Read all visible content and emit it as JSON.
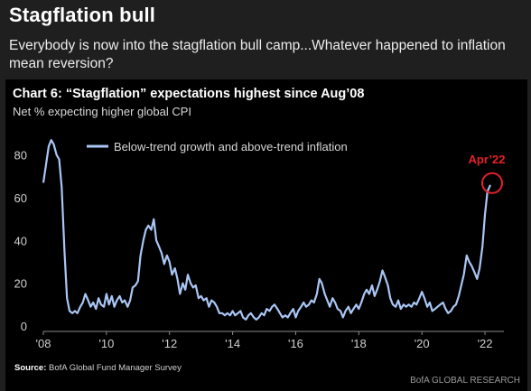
{
  "header": {
    "title": "Stagflation bull",
    "subtitle": "Everybody is now into the stagflation bull camp...Whatever happened to inflation mean reversion?"
  },
  "chart_data": {
    "type": "line",
    "title": "Chart 6: “Stagflation” expectations highest since Aug’08",
    "subtitle": "Net % expecting higher global CPI",
    "xlabel": "",
    "ylabel": "",
    "xlim": [
      2008.0,
      2022.6
    ],
    "ylim": [
      0,
      90
    ],
    "grid": false,
    "legend_position": "top-left",
    "yticks": [
      0,
      20,
      40,
      60,
      80
    ],
    "xticks": [
      {
        "value": 2008,
        "label": "'08"
      },
      {
        "value": 2010,
        "label": "'10"
      },
      {
        "value": 2012,
        "label": "'12"
      },
      {
        "value": 2014,
        "label": "'14"
      },
      {
        "value": 2016,
        "label": "'16"
      },
      {
        "value": 2018,
        "label": "'18"
      },
      {
        "value": 2020,
        "label": "'20"
      },
      {
        "value": 2022,
        "label": "'22"
      }
    ],
    "line_color": "#a9c6f5",
    "series": [
      {
        "name": "Below-trend growth and above-trend inflation",
        "points": [
          [
            2008.0,
            67
          ],
          [
            2008.08,
            75
          ],
          [
            2008.17,
            84
          ],
          [
            2008.25,
            87
          ],
          [
            2008.33,
            85
          ],
          [
            2008.42,
            80
          ],
          [
            2008.5,
            78
          ],
          [
            2008.58,
            65
          ],
          [
            2008.67,
            35
          ],
          [
            2008.75,
            13
          ],
          [
            2008.83,
            7
          ],
          [
            2008.92,
            6
          ],
          [
            2009.0,
            7
          ],
          [
            2009.08,
            6
          ],
          [
            2009.17,
            9
          ],
          [
            2009.25,
            11
          ],
          [
            2009.33,
            15
          ],
          [
            2009.42,
            12
          ],
          [
            2009.5,
            9
          ],
          [
            2009.58,
            11
          ],
          [
            2009.67,
            8
          ],
          [
            2009.75,
            13
          ],
          [
            2009.83,
            10
          ],
          [
            2009.92,
            9
          ],
          [
            2010.0,
            15
          ],
          [
            2010.08,
            10
          ],
          [
            2010.17,
            14
          ],
          [
            2010.25,
            9
          ],
          [
            2010.33,
            12
          ],
          [
            2010.42,
            14
          ],
          [
            2010.5,
            11
          ],
          [
            2010.58,
            12
          ],
          [
            2010.67,
            9
          ],
          [
            2010.75,
            12
          ],
          [
            2010.83,
            18
          ],
          [
            2010.92,
            19
          ],
          [
            2011.0,
            21
          ],
          [
            2011.08,
            33
          ],
          [
            2011.17,
            40
          ],
          [
            2011.25,
            45
          ],
          [
            2011.33,
            47
          ],
          [
            2011.42,
            45
          ],
          [
            2011.5,
            50
          ],
          [
            2011.58,
            40
          ],
          [
            2011.67,
            37
          ],
          [
            2011.75,
            34
          ],
          [
            2011.83,
            29
          ],
          [
            2011.92,
            33
          ],
          [
            2012.0,
            30
          ],
          [
            2012.08,
            24
          ],
          [
            2012.17,
            27
          ],
          [
            2012.25,
            22
          ],
          [
            2012.33,
            15
          ],
          [
            2012.42,
            20
          ],
          [
            2012.5,
            17
          ],
          [
            2012.58,
            24
          ],
          [
            2012.67,
            20
          ],
          [
            2012.75,
            18
          ],
          [
            2012.83,
            19
          ],
          [
            2012.92,
            13
          ],
          [
            2013.0,
            14
          ],
          [
            2013.08,
            12
          ],
          [
            2013.17,
            13
          ],
          [
            2013.25,
            9
          ],
          [
            2013.33,
            12
          ],
          [
            2013.42,
            11
          ],
          [
            2013.5,
            9
          ],
          [
            2013.58,
            6
          ],
          [
            2013.67,
            6
          ],
          [
            2013.75,
            5
          ],
          [
            2013.83,
            6
          ],
          [
            2013.92,
            5
          ],
          [
            2014.0,
            7
          ],
          [
            2014.08,
            5
          ],
          [
            2014.17,
            6
          ],
          [
            2014.25,
            7
          ],
          [
            2014.33,
            4
          ],
          [
            2014.42,
            3
          ],
          [
            2014.5,
            5
          ],
          [
            2014.58,
            6
          ],
          [
            2014.67,
            4
          ],
          [
            2014.75,
            3
          ],
          [
            2014.83,
            4
          ],
          [
            2014.92,
            6
          ],
          [
            2015.0,
            5
          ],
          [
            2015.08,
            8
          ],
          [
            2015.17,
            7
          ],
          [
            2015.25,
            9
          ],
          [
            2015.33,
            10
          ],
          [
            2015.42,
            8
          ],
          [
            2015.5,
            6
          ],
          [
            2015.58,
            4
          ],
          [
            2015.67,
            5
          ],
          [
            2015.75,
            4
          ],
          [
            2015.83,
            6
          ],
          [
            2015.92,
            8
          ],
          [
            2016.0,
            4
          ],
          [
            2016.08,
            7
          ],
          [
            2016.17,
            9
          ],
          [
            2016.25,
            11
          ],
          [
            2016.33,
            9
          ],
          [
            2016.42,
            10
          ],
          [
            2016.5,
            12
          ],
          [
            2016.58,
            11
          ],
          [
            2016.67,
            15
          ],
          [
            2016.75,
            22
          ],
          [
            2016.83,
            20
          ],
          [
            2016.92,
            15
          ],
          [
            2017.0,
            12
          ],
          [
            2017.08,
            9
          ],
          [
            2017.17,
            13
          ],
          [
            2017.25,
            11
          ],
          [
            2017.33,
            8
          ],
          [
            2017.42,
            7
          ],
          [
            2017.5,
            4
          ],
          [
            2017.58,
            7
          ],
          [
            2017.67,
            9
          ],
          [
            2017.75,
            6
          ],
          [
            2017.83,
            8
          ],
          [
            2017.92,
            10
          ],
          [
            2018.0,
            8
          ],
          [
            2018.08,
            11
          ],
          [
            2018.17,
            15
          ],
          [
            2018.25,
            17
          ],
          [
            2018.33,
            15
          ],
          [
            2018.42,
            19
          ],
          [
            2018.5,
            14
          ],
          [
            2018.58,
            17
          ],
          [
            2018.67,
            21
          ],
          [
            2018.75,
            26
          ],
          [
            2018.83,
            23
          ],
          [
            2018.92,
            19
          ],
          [
            2019.0,
            13
          ],
          [
            2019.08,
            10
          ],
          [
            2019.17,
            9
          ],
          [
            2019.25,
            12
          ],
          [
            2019.33,
            8
          ],
          [
            2019.42,
            10
          ],
          [
            2019.5,
            9
          ],
          [
            2019.58,
            10
          ],
          [
            2019.67,
            9
          ],
          [
            2019.75,
            11
          ],
          [
            2019.83,
            10
          ],
          [
            2019.92,
            13
          ],
          [
            2020.0,
            16
          ],
          [
            2020.08,
            13
          ],
          [
            2020.17,
            9
          ],
          [
            2020.25,
            11
          ],
          [
            2020.33,
            7
          ],
          [
            2020.42,
            8
          ],
          [
            2020.5,
            9
          ],
          [
            2020.58,
            10
          ],
          [
            2020.67,
            11
          ],
          [
            2020.75,
            8
          ],
          [
            2020.83,
            6
          ],
          [
            2020.92,
            7
          ],
          [
            2021.0,
            9
          ],
          [
            2021.08,
            10
          ],
          [
            2021.17,
            14
          ],
          [
            2021.25,
            19
          ],
          [
            2021.33,
            24
          ],
          [
            2021.42,
            33
          ],
          [
            2021.5,
            30
          ],
          [
            2021.58,
            28
          ],
          [
            2021.67,
            25
          ],
          [
            2021.75,
            22
          ],
          [
            2021.83,
            27
          ],
          [
            2021.92,
            37
          ],
          [
            2022.0,
            52
          ],
          [
            2022.08,
            63
          ],
          [
            2022.17,
            66
          ]
        ]
      }
    ],
    "annotations": [
      {
        "text": "Apr’22",
        "x": 2022.17,
        "y": 66,
        "color": "#e8202a"
      }
    ]
  },
  "footer": {
    "source_label": "Source:",
    "source_text": " BofA Global Fund Manager Survey",
    "credit": "BofA GLOBAL RESEARCH"
  }
}
